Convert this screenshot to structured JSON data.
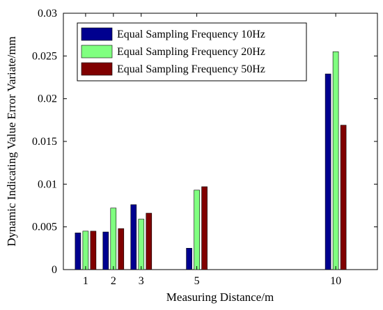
{
  "chart_data": {
    "type": "bar",
    "title": "",
    "xlabel": "Measuring Distance/m",
    "ylabel": "Dynamic Indicating Value  Error Variate/mm",
    "x": [
      1,
      2,
      3,
      5,
      10
    ],
    "xticks": [
      "1",
      "2",
      "3",
      "5",
      "10"
    ],
    "xlim": [
      0.2,
      11.5
    ],
    "ylim": [
      0,
      0.03
    ],
    "yticks": [
      "0",
      "0.005",
      "0.01",
      "0.015",
      "0.02",
      "0.025",
      "0.03"
    ],
    "grid": false,
    "legend_position": "top-left",
    "series": [
      {
        "name": "Equal Sampling Frequency 10Hz",
        "color": "#00008f",
        "values": [
          0.0043,
          0.0044,
          0.0076,
          0.0025,
          0.0229
        ]
      },
      {
        "name": "Equal Sampling Frequency 20Hz",
        "color": "#80ff80",
        "values": [
          0.0045,
          0.0072,
          0.0059,
          0.0093,
          0.0255
        ]
      },
      {
        "name": "Equal Sampling Frequency 50Hz",
        "color": "#800000",
        "values": [
          0.0045,
          0.0048,
          0.0066,
          0.0097,
          0.0169
        ]
      }
    ]
  }
}
